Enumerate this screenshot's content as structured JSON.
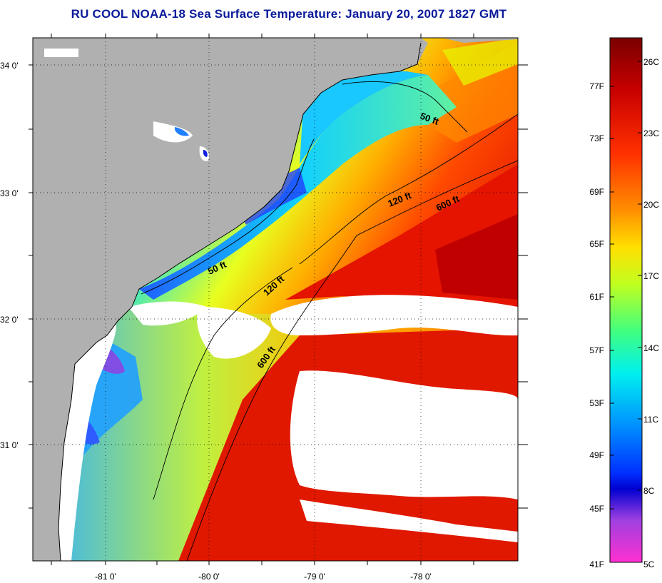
{
  "title": "RU COOL  NOAA-18  Sea Surface Temperature:  January 20, 2007 1827 GMT",
  "map": {
    "lat_labels": [
      "34 0'",
      "33 0'",
      "32 0'",
      "31 0'"
    ],
    "lon_labels": [
      "-81 0'",
      "-80 0'",
      "-79 0'",
      "-78 0'"
    ],
    "contour_labels": [
      "50 ft",
      "120 ft",
      "600 ft",
      "50 ft",
      "120 ft",
      "600 ft"
    ],
    "colors": {
      "land": "#b0b0b0",
      "cloud_mask": "#ffffff",
      "border": "#000000"
    }
  },
  "colorbar": {
    "fahrenheit": [
      "77F",
      "73F",
      "69F",
      "65F",
      "61F",
      "57F",
      "53F",
      "49F",
      "45F",
      "41F"
    ],
    "celsius": [
      "26C",
      "23C",
      "20C",
      "17C",
      "14C",
      "11C",
      "8C",
      "5C"
    ]
  }
}
